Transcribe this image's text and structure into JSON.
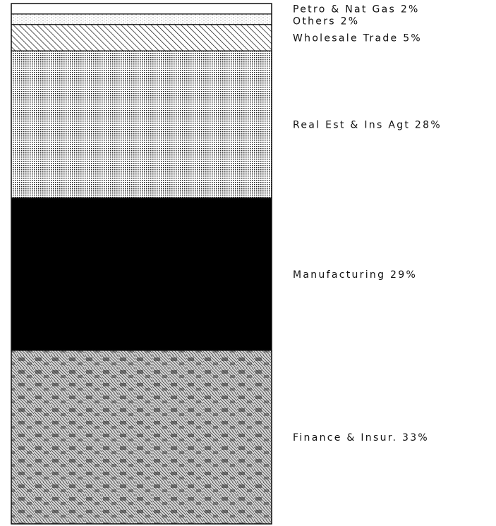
{
  "chart_data": {
    "type": "bar",
    "stacked": true,
    "orientation": "vertical-100-percent",
    "title": "",
    "xlabel": "",
    "ylabel": "",
    "ylim": [
      0,
      100
    ],
    "grid": false,
    "legend": "none",
    "segments": [
      {
        "name": "Petro & Nat Gas",
        "value": 2,
        "label": "Petro & Nat Gas 2%",
        "pattern": "white"
      },
      {
        "name": "Others",
        "value": 2,
        "label": "Others 2%",
        "pattern": "light-speckle"
      },
      {
        "name": "Wholesale Trade",
        "value": 5,
        "label": "Wholesale Trade 5%",
        "pattern": "diagonal-hatch"
      },
      {
        "name": "Real Est & Ins Agt",
        "value": 28,
        "label": "Real Est & Ins Agt 28%",
        "pattern": "dot-grid"
      },
      {
        "name": "Manufacturing",
        "value": 29,
        "label": "Manufacturing 29%",
        "pattern": "solid-black"
      },
      {
        "name": "Finance & Insur.",
        "value": 33,
        "label": "Finance & Insur. 33%",
        "pattern": "dense-hatch"
      }
    ],
    "colors": {
      "ink": "#111111",
      "paper": "#ffffff"
    }
  }
}
